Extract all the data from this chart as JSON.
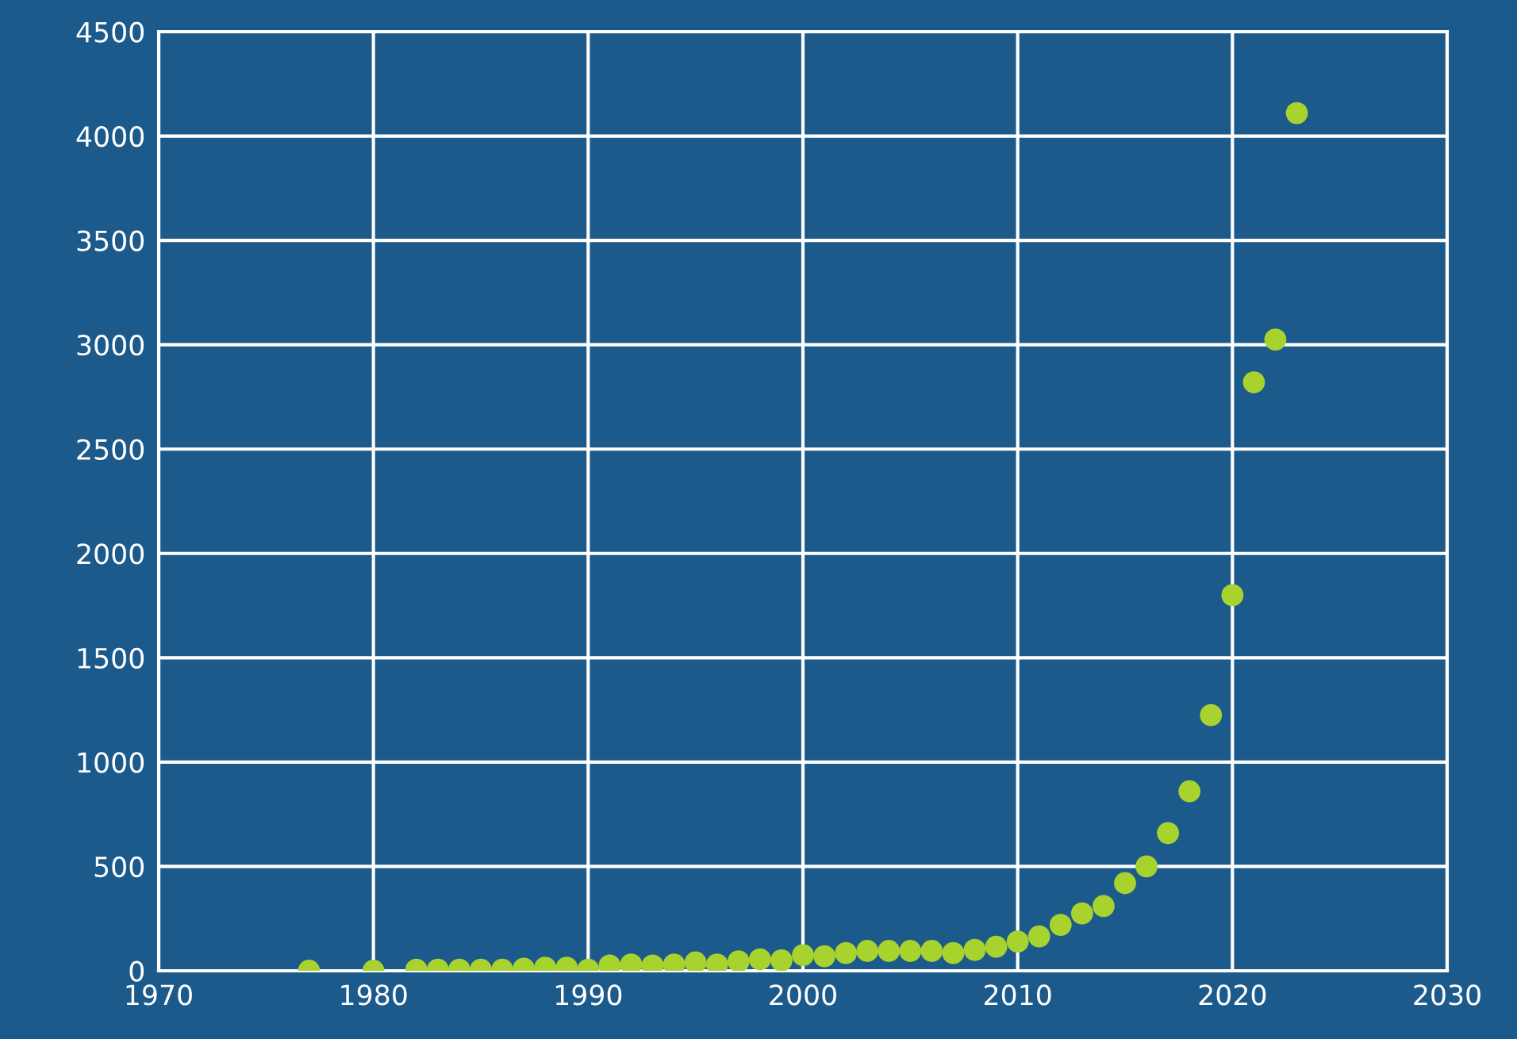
{
  "chart_data": {
    "type": "scatter",
    "x": [
      1977,
      1980,
      1982,
      1983,
      1984,
      1985,
      1986,
      1987,
      1988,
      1989,
      1990,
      1991,
      1992,
      1993,
      1994,
      1995,
      1996,
      1997,
      1998,
      1999,
      2000,
      2001,
      2002,
      2003,
      2004,
      2005,
      2006,
      2007,
      2008,
      2009,
      2010,
      2011,
      2012,
      2013,
      2014,
      2015,
      2016,
      2017,
      2018,
      2019,
      2020,
      2021,
      2022,
      2023
    ],
    "series": [
      {
        "color": "#a8d32e",
        "values": [
          0,
          0,
          5,
          5,
          5,
          5,
          5,
          10,
          15,
          15,
          5,
          25,
          30,
          25,
          30,
          40,
          30,
          45,
          55,
          50,
          75,
          70,
          85,
          95,
          95,
          95,
          95,
          85,
          100,
          115,
          140,
          165,
          220,
          275,
          310,
          420,
          500,
          660,
          860,
          1225,
          1800,
          2820,
          3025,
          4110
        ]
      }
    ],
    "xlim": [
      1970,
      2030
    ],
    "xticks": [
      1970,
      1980,
      1990,
      2000,
      2010,
      2020,
      2030
    ],
    "ylim": [
      0,
      4500
    ],
    "yticks": [
      0,
      500,
      1000,
      1500,
      2000,
      2500,
      3000,
      3500,
      4000,
      4500
    ],
    "grid": true,
    "marker": "circle"
  }
}
